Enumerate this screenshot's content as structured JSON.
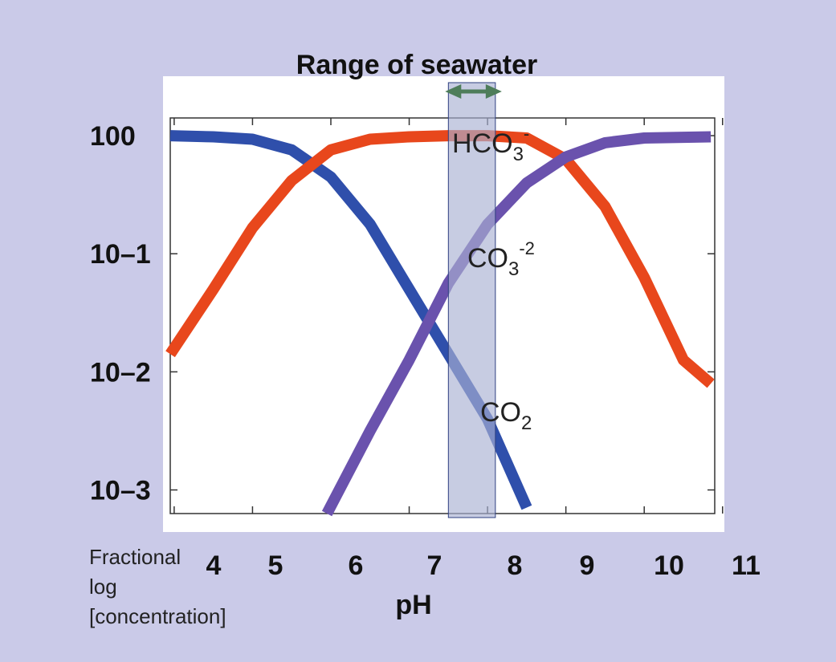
{
  "colors": {
    "background": "#cacae8",
    "plot_bg": "#ffffff",
    "co2": "#2f4fab",
    "hco3": "#e8471c",
    "co3": "#6a52ad",
    "band": "#a9b0d3",
    "arrow": "#4e7d5a"
  },
  "chart_data": {
    "type": "line",
    "title": "Range of seawater",
    "xlabel": "pH",
    "ylabel": "Fractional log [concentration]",
    "x_ticks": [
      "4",
      "5",
      "6",
      "7",
      "8",
      "9",
      "10",
      "11"
    ],
    "y_ticks": [
      "100",
      "10–1",
      "10–2",
      "10–3"
    ],
    "xlim": [
      3.95,
      10.9
    ],
    "ylim": [
      -3.2,
      0.15
    ],
    "y_scale": "log10",
    "seawater_band": [
      7.5,
      8.1
    ],
    "series": [
      {
        "key": "co2",
        "name": "CO2",
        "label_main": "CO",
        "label_sub": "2",
        "points": [
          [
            3.95,
            0.0
          ],
          [
            4.5,
            -0.01
          ],
          [
            5.0,
            -0.03
          ],
          [
            5.5,
            -0.12
          ],
          [
            6.0,
            -0.35
          ],
          [
            6.5,
            -0.75
          ],
          [
            7.0,
            -1.3
          ],
          [
            7.5,
            -1.85
          ],
          [
            8.0,
            -2.4
          ],
          [
            8.5,
            -3.15
          ]
        ]
      },
      {
        "key": "hco3",
        "name": "HCO3-",
        "label_main": "HCO",
        "label_sub": "3",
        "label_sup": "-",
        "points": [
          [
            3.95,
            -1.85
          ],
          [
            4.5,
            -1.3
          ],
          [
            5.0,
            -0.78
          ],
          [
            5.5,
            -0.38
          ],
          [
            6.0,
            -0.12
          ],
          [
            6.5,
            -0.03
          ],
          [
            7.0,
            -0.01
          ],
          [
            7.5,
            0.0
          ],
          [
            8.0,
            0.0
          ],
          [
            8.5,
            -0.02
          ],
          [
            9.0,
            -0.2
          ],
          [
            9.5,
            -0.6
          ],
          [
            10.0,
            -1.2
          ],
          [
            10.5,
            -1.9
          ],
          [
            10.85,
            -2.1
          ]
        ]
      },
      {
        "key": "co3",
        "name": "CO3-2",
        "label_main": "CO",
        "label_sub": "3",
        "label_sup": "-2",
        "points": [
          [
            5.95,
            -3.2
          ],
          [
            6.5,
            -2.5
          ],
          [
            7.0,
            -1.9
          ],
          [
            7.5,
            -1.25
          ],
          [
            8.0,
            -0.75
          ],
          [
            8.5,
            -0.4
          ],
          [
            9.0,
            -0.18
          ],
          [
            9.5,
            -0.06
          ],
          [
            10.0,
            -0.02
          ],
          [
            10.85,
            -0.01
          ]
        ]
      }
    ],
    "annotation": "Fractional\nlog\n[concentration]"
  }
}
